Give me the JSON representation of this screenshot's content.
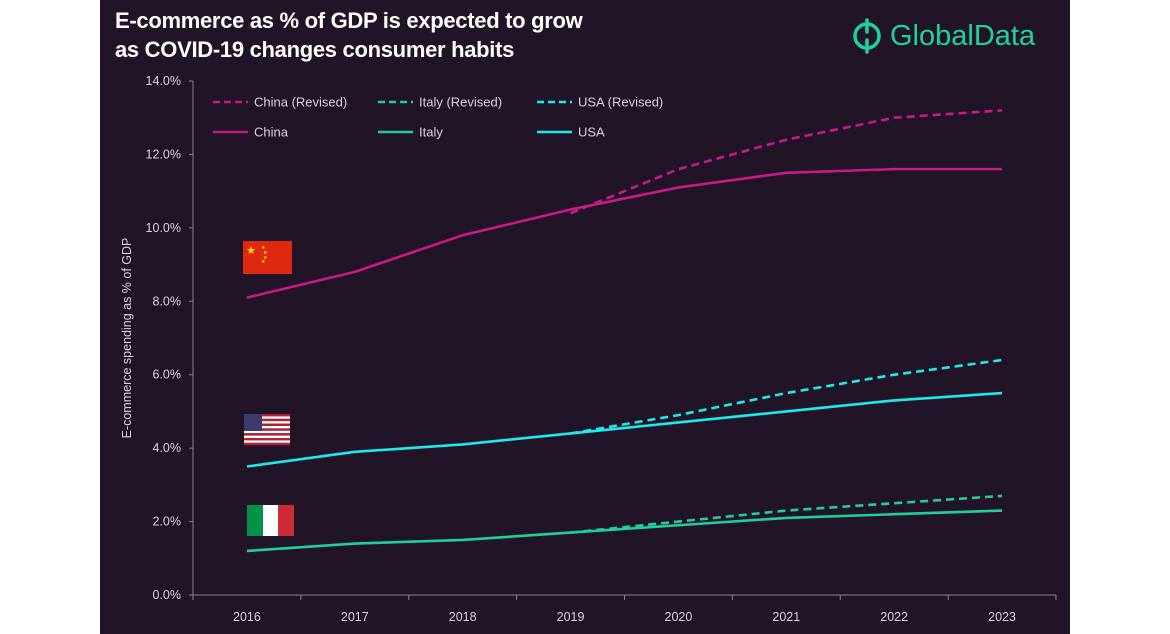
{
  "title_line1": "E-commerce as % of GDP is expected to grow",
  "title_line2": "as COVID-19 changes consumer habits",
  "logo_text": "GlobalData",
  "colors": {
    "background": "#211427",
    "china": "#c8188c",
    "italy": "#1fcf98",
    "usa": "#1ce9f0",
    "logo": "#1ed39a"
  },
  "chart_data": {
    "type": "line",
    "title": "E-commerce as % of GDP is expected to grow as COVID-19 changes consumer habits",
    "xlabel": "",
    "ylabel": "E-commerce spending as % of GDP",
    "ylim": [
      0,
      14
    ],
    "yticks": [
      "0.0%",
      "2.0%",
      "4.0%",
      "6.0%",
      "8.0%",
      "10.0%",
      "12.0%",
      "14.0%"
    ],
    "categories": [
      "2016",
      "2017",
      "2018",
      "2019",
      "2020",
      "2021",
      "2022",
      "2023"
    ],
    "grid": false,
    "legend_position": "top",
    "series": [
      {
        "name": "China (Revised)",
        "color": "#c8188c",
        "dashed": true,
        "values": [
          null,
          null,
          null,
          10.4,
          11.6,
          12.4,
          13.0,
          13.2
        ]
      },
      {
        "name": "Italy (Revised)",
        "color": "#1fcf98",
        "dashed": true,
        "values": [
          null,
          null,
          null,
          1.7,
          2.0,
          2.3,
          2.5,
          2.7
        ]
      },
      {
        "name": "USA (Revised)",
        "color": "#1ce9f0",
        "dashed": true,
        "values": [
          null,
          null,
          null,
          4.4,
          4.9,
          5.5,
          6.0,
          6.4
        ]
      },
      {
        "name": "China",
        "color": "#c8188c",
        "dashed": false,
        "values": [
          8.1,
          8.8,
          9.8,
          10.5,
          11.1,
          11.5,
          11.6,
          11.6
        ]
      },
      {
        "name": "Italy",
        "color": "#1fcf98",
        "dashed": false,
        "values": [
          1.2,
          1.4,
          1.5,
          1.7,
          1.9,
          2.1,
          2.2,
          2.3
        ]
      },
      {
        "name": "USA",
        "color": "#1ce9f0",
        "dashed": false,
        "values": [
          3.5,
          3.9,
          4.1,
          4.4,
          4.7,
          5.0,
          5.3,
          5.5
        ]
      }
    ],
    "annotations": [
      "china-flag",
      "usa-flag",
      "italy-flag"
    ]
  }
}
